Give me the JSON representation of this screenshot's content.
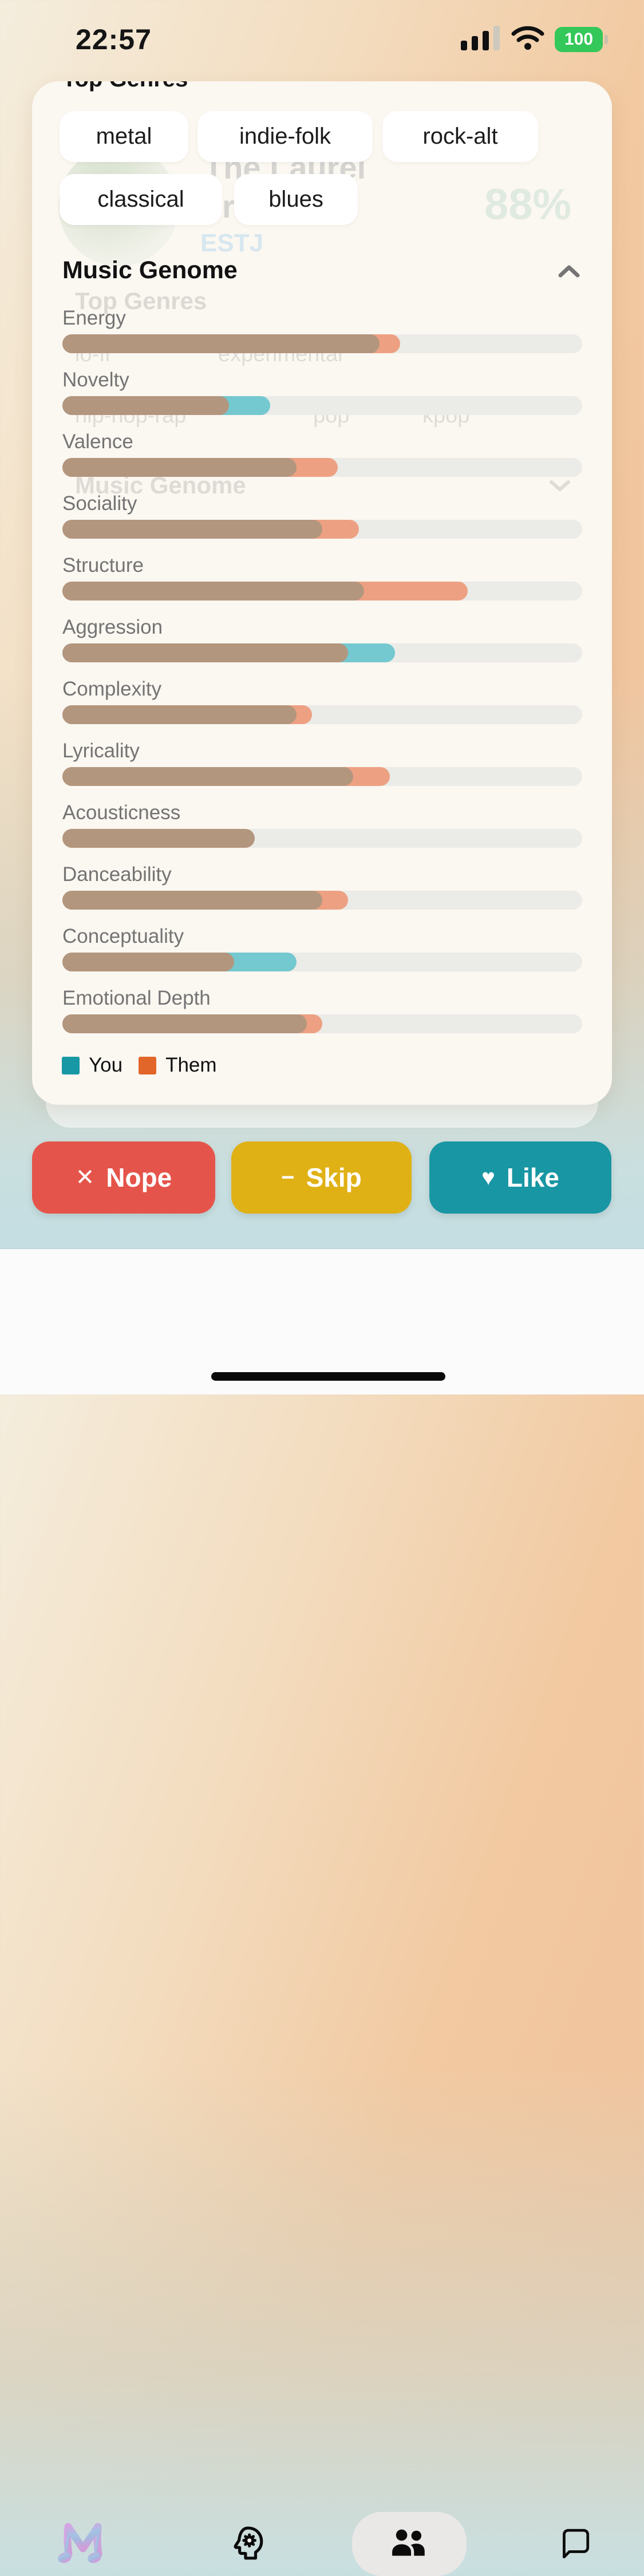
{
  "status_bar": {
    "time": "22:57",
    "battery_percent": "100"
  },
  "overlay_card": {
    "heading_clipped": "Top Genres",
    "genre_chips": [
      "metal",
      "indie-folk",
      "rock-alt",
      "classical",
      "blues"
    ],
    "section": {
      "title": "Music Genome"
    },
    "legend": [
      {
        "label": "You",
        "color": "#1898a4"
      },
      {
        "label": "Them",
        "color": "#e2662a"
      }
    ]
  },
  "background_card": {
    "name": "The Laurel",
    "name_fragment": "r",
    "match_percent": "88%",
    "personality_type": "ESTJ",
    "heading": "Top Genres",
    "genre_tags": [
      "lo-fi",
      "experimental",
      "hip-hop-rap",
      "pop",
      "kpop"
    ],
    "section_title": "Music Genome"
  },
  "chart_data": {
    "type": "bar",
    "title": "Music Genome",
    "orientation": "horizontal",
    "categories": [
      "Energy",
      "Novelty",
      "Valence",
      "Sociality",
      "Structure",
      "Aggression",
      "Complexity",
      "Lyricality",
      "Acousticness",
      "Danceability",
      "Conceptuality",
      "Emotional Depth"
    ],
    "series": [
      {
        "name": "You",
        "color": "#1898a4",
        "bar_color": "#74c8cf",
        "values": [
          61,
          40,
          45,
          50,
          58,
          64,
          45,
          56,
          37,
          50,
          45,
          47
        ]
      },
      {
        "name": "Them",
        "color": "#e2662a",
        "bar_color": "#eda182",
        "values": [
          65,
          32,
          53,
          57,
          78,
          55,
          48,
          63,
          37,
          55,
          33,
          50
        ]
      }
    ],
    "overlap_color": "#b3967e",
    "track_color": "#ebebe8",
    "xlim": [
      0,
      100
    ],
    "legend_position": "bottom-left",
    "grid": false
  },
  "action_buttons": [
    {
      "id": "nope",
      "label": "Nope",
      "icon": "x-icon",
      "glyph": "✕",
      "color": "#e5544a"
    },
    {
      "id": "skip",
      "label": "Skip",
      "icon": "minus-icon",
      "glyph": "−",
      "color": "#e0b115"
    },
    {
      "id": "like",
      "label": "Like",
      "icon": "heart-icon",
      "glyph": "♥",
      "color": "#1996a3"
    }
  ],
  "tab_bar": {
    "items": [
      {
        "id": "music",
        "icon": "m-logo-icon",
        "active": false
      },
      {
        "id": "personality",
        "icon": "psychology-head-icon",
        "active": false
      },
      {
        "id": "people",
        "icon": "people-icon",
        "active": true
      },
      {
        "id": "chat",
        "icon": "chat-bubble-icon",
        "active": false
      }
    ]
  }
}
